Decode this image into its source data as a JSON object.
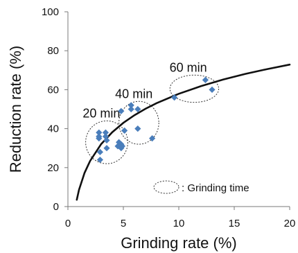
{
  "chart_data": {
    "type": "scatter",
    "xlabel": "Grinding rate (%)",
    "ylabel": "Reduction rate (%)",
    "xlim": [
      0,
      20
    ],
    "ylim": [
      0,
      100
    ],
    "x_ticks": [
      "0",
      "5",
      "10",
      "15",
      "20"
    ],
    "y_ticks": [
      "0",
      "20",
      "40",
      "60",
      "80",
      "100"
    ],
    "grid": false,
    "marker_color": "#4a7ebb",
    "curve_color": "#111111",
    "points": [
      {
        "x": 2.8,
        "y": 38
      },
      {
        "x": 2.8,
        "y": 36
      },
      {
        "x": 2.8,
        "y": 35
      },
      {
        "x": 2.9,
        "y": 28
      },
      {
        "x": 2.9,
        "y": 24
      },
      {
        "x": 3.4,
        "y": 38
      },
      {
        "x": 3.4,
        "y": 36
      },
      {
        "x": 3.5,
        "y": 34
      },
      {
        "x": 3.5,
        "y": 30
      },
      {
        "x": 4.5,
        "y": 31
      },
      {
        "x": 4.6,
        "y": 33
      },
      {
        "x": 4.8,
        "y": 32
      },
      {
        "x": 4.8,
        "y": 30
      },
      {
        "x": 4.9,
        "y": 31
      },
      {
        "x": 4.8,
        "y": 49
      },
      {
        "x": 5.1,
        "y": 39
      },
      {
        "x": 5.7,
        "y": 52
      },
      {
        "x": 5.7,
        "y": 50
      },
      {
        "x": 6.3,
        "y": 50
      },
      {
        "x": 6.3,
        "y": 40
      },
      {
        "x": 7.6,
        "y": 35
      },
      {
        "x": 9.6,
        "y": 56
      },
      {
        "x": 12.4,
        "y": 65
      },
      {
        "x": 13.0,
        "y": 60
      }
    ],
    "trend_curve": [
      {
        "x": 0.8,
        "y": 3.5
      },
      {
        "x": 1.0,
        "y": 8.6
      },
      {
        "x": 1.5,
        "y": 17.3
      },
      {
        "x": 2.0,
        "y": 23.4
      },
      {
        "x": 3.0,
        "y": 32.1
      },
      {
        "x": 4.0,
        "y": 38.2
      },
      {
        "x": 5.0,
        "y": 43.0
      },
      {
        "x": 6.0,
        "y": 46.9
      },
      {
        "x": 7.0,
        "y": 50.2
      },
      {
        "x": 8.0,
        "y": 53.1
      },
      {
        "x": 10.0,
        "y": 57.9
      },
      {
        "x": 12.0,
        "y": 61.8
      },
      {
        "x": 14.0,
        "y": 65.2
      },
      {
        "x": 16.0,
        "y": 68.1
      },
      {
        "x": 18.0,
        "y": 70.6
      },
      {
        "x": 20.0,
        "y": 72.9
      }
    ],
    "groups": [
      {
        "label": "20 min",
        "cx": 3.5,
        "cy": 33,
        "rx": 1.9,
        "ry": 11
      },
      {
        "label": "40 min",
        "cx": 6.4,
        "cy": 43,
        "rx": 1.8,
        "ry": 11
      },
      {
        "label": "60 min",
        "cx": 11.4,
        "cy": 60.5,
        "rx": 2.2,
        "ry": 7
      }
    ],
    "legend": {
      "text": ": Grinding time",
      "placement": "bottom-right"
    }
  }
}
